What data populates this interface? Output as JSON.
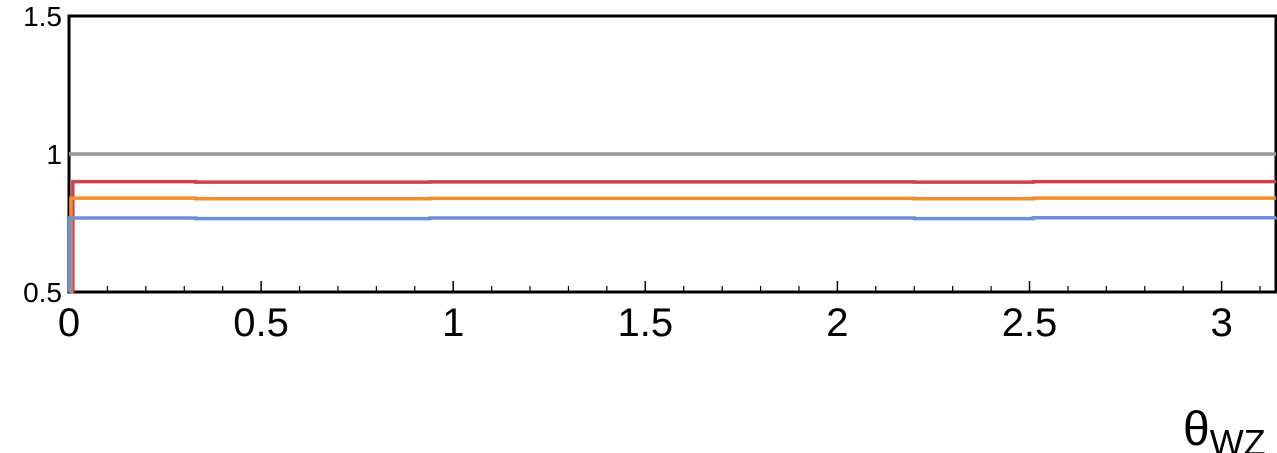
{
  "chart_data": {
    "type": "line",
    "title": "",
    "xlabel": {
      "base": "θ",
      "sub": "WZ"
    },
    "ylabel": "",
    "xlim": [
      0,
      3.1416
    ],
    "ylim": [
      0.5,
      1.5
    ],
    "grid": false,
    "x_major_ticks": [
      0,
      0.5,
      1,
      1.5,
      2,
      2.5,
      3
    ],
    "x_minor_step": 0.1,
    "y_major_ticks": [
      0.5,
      1,
      1.5
    ],
    "x_tick_labels": [
      "0",
      "0.5",
      "1",
      "1.5",
      "2",
      "2.5",
      "3"
    ],
    "y_tick_labels": [
      "0.5",
      "1",
      "1.5"
    ],
    "series": [
      {
        "color": "#999999",
        "step": true,
        "x": [
          0,
          0.0001,
          3.1416
        ],
        "y": [
          1.0,
          1.0,
          1.0
        ]
      },
      {
        "color": "#d0404c",
        "step": true,
        "x": [
          0,
          0.01,
          0.33,
          0.94,
          1.57,
          2.2,
          2.51,
          3.1416
        ],
        "y": [
          0.5,
          0.9,
          0.898,
          0.899,
          0.899,
          0.898,
          0.9,
          0.9
        ]
      },
      {
        "color": "#f28e2b",
        "step": true,
        "x": [
          0,
          0.005,
          0.33,
          0.94,
          1.57,
          2.2,
          2.51,
          3.1416
        ],
        "y": [
          0.5,
          0.84,
          0.838,
          0.839,
          0.839,
          0.838,
          0.84,
          0.84
        ]
      },
      {
        "color": "#6a92d8",
        "step": true,
        "x": [
          0,
          0.002,
          0.33,
          0.94,
          1.57,
          2.2,
          2.51,
          3.1416
        ],
        "y": [
          0.5,
          0.768,
          0.766,
          0.768,
          0.768,
          0.766,
          0.769,
          0.77
        ]
      }
    ]
  }
}
